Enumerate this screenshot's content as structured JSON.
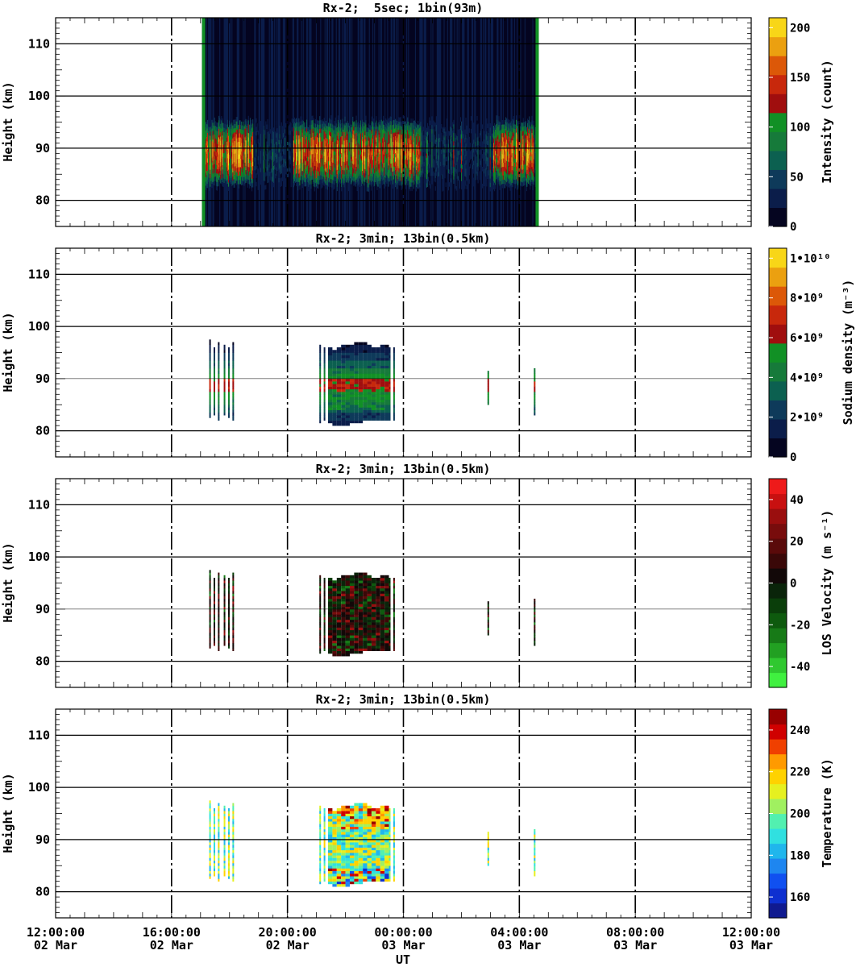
{
  "figure": {
    "x_tick_times": [
      "12:00:00",
      "16:00:00",
      "20:00:00",
      "00:00:00",
      "04:00:00",
      "08:00:00",
      "12:00:00"
    ],
    "x_tick_dates": [
      "02 Mar",
      "02 Mar",
      "02 Mar",
      "03 Mar",
      "03 Mar",
      "03 Mar",
      "03 Mar"
    ],
    "xlabel": "UT"
  },
  "chart_data": [
    {
      "type": "heatmap",
      "title": "Rx-2;  5sec; 1bin(93m)",
      "ylabel": "Height (km)",
      "x_range_hours": [
        12,
        36
      ],
      "ylim": [
        75,
        115
      ],
      "y_ticks": [
        80,
        90,
        100,
        110
      ],
      "grid": true,
      "colorbar": {
        "label": "Intensity (count)",
        "range": [
          0,
          210
        ],
        "tick_values": [
          0,
          50,
          100,
          150,
          200
        ],
        "tick_labels": [
          "0",
          "50",
          "100",
          "150",
          "200"
        ],
        "colors": [
          "#050520",
          "#0b1d4a",
          "#0e3a5a",
          "#0c6050",
          "#167a3a",
          "#119025",
          "#a00e0e",
          "#c8280c",
          "#dc5808",
          "#eba010",
          "#f8d618"
        ]
      },
      "data_coverage_hours": [
        [
          17.05,
          28.6
        ]
      ],
      "layer": {
        "center_km": 89,
        "half_width_km": 5.5
      },
      "bright_intervals_hours": [
        [
          17.1,
          18.8
        ],
        [
          20.2,
          24.6
        ],
        [
          27.1,
          28.5
        ]
      ]
    },
    {
      "type": "heatmap",
      "title": "Rx-2; 3min; 13bin(0.5km)",
      "ylabel": "Height (km)",
      "ylim": [
        75,
        115
      ],
      "y_ticks": [
        80,
        90,
        100,
        110
      ],
      "colorbar": {
        "label": "Sodium density (m⁻³)",
        "range": [
          0,
          10500000000.0
        ],
        "tick_values": [
          0,
          2000000000.0,
          4000000000.0,
          6000000000.0,
          8000000000.0,
          10000000000.0
        ],
        "tick_labels": [
          "0",
          "2•10⁹",
          "4•10⁹",
          "6•10⁹",
          "8•10⁹",
          "1•10¹⁰"
        ],
        "colors": [
          "#050520",
          "#0b1d4a",
          "#0e3a5a",
          "#0c6050",
          "#167a3a",
          "#119025",
          "#a00e0e",
          "#c8280c",
          "#dc5808",
          "#eba010",
          "#f8d618"
        ]
      },
      "profile_start_hours": [
        17.3,
        17.45,
        17.6,
        17.8,
        17.95,
        18.1,
        21.1,
        21.25,
        21.4,
        21.55,
        21.7,
        21.85,
        22.0,
        22.15,
        22.3,
        22.45,
        22.6,
        22.75,
        22.9,
        23.05,
        23.2,
        23.35,
        23.5,
        23.65,
        26.9,
        28.5
      ],
      "profile_width_hours": 0.05,
      "profile_ranges_km": [
        [
          82.5,
          97.5
        ],
        [
          83,
          96
        ],
        [
          82,
          97
        ],
        [
          83,
          96.5
        ],
        [
          82.5,
          96
        ],
        [
          82,
          97
        ],
        [
          81.5,
          96.5
        ],
        [
          82,
          96
        ],
        [
          81.5,
          96
        ],
        [
          81,
          95.5
        ],
        [
          81,
          96
        ],
        [
          81,
          96.5
        ],
        [
          81,
          96.5
        ],
        [
          81.5,
          96.5
        ],
        [
          81.5,
          97
        ],
        [
          81.5,
          97
        ],
        [
          82,
          97
        ],
        [
          82,
          96.5
        ],
        [
          82,
          96
        ],
        [
          82,
          96
        ],
        [
          82,
          96.5
        ],
        [
          82,
          96.5
        ],
        [
          82,
          96
        ],
        [
          82,
          96
        ],
        [
          85,
          91.5
        ],
        [
          83,
          92
        ]
      ]
    },
    {
      "type": "heatmap",
      "title": "Rx-2; 3min; 13bin(0.5km)",
      "ylabel": "Height (km)",
      "ylim": [
        75,
        115
      ],
      "y_ticks": [
        80,
        90,
        100,
        110
      ],
      "colorbar": {
        "label": "LOS Velocity (m s⁻¹)",
        "range": [
          -50,
          50
        ],
        "tick_values": [
          -40,
          -20,
          0,
          20,
          40
        ],
        "tick_labels": [
          "-40",
          "-20",
          "0",
          "20",
          "40"
        ],
        "colors": [
          "#40f040",
          "#30c830",
          "#22a022",
          "#177a17",
          "#0e5a0e",
          "#0a3e0a",
          "#0a240a",
          "#120808",
          "#3a0808",
          "#5a0a0a",
          "#780c0c",
          "#9a0e0e",
          "#c81010",
          "#ee1a1a"
        ]
      },
      "profile_start_hours": [
        17.3,
        17.45,
        17.6,
        17.8,
        17.95,
        18.1,
        21.1,
        21.25,
        21.4,
        21.55,
        21.7,
        21.85,
        22.0,
        22.15,
        22.3,
        22.45,
        22.6,
        22.75,
        22.9,
        23.05,
        23.2,
        23.35,
        23.5,
        23.65,
        26.9,
        28.5
      ],
      "profile_width_hours": 0.05,
      "profile_ranges_km": [
        [
          82.5,
          97.5
        ],
        [
          83,
          96
        ],
        [
          82,
          97
        ],
        [
          83,
          96.5
        ],
        [
          82.5,
          96
        ],
        [
          82,
          97
        ],
        [
          81.5,
          96.5
        ],
        [
          82,
          96
        ],
        [
          81.5,
          96
        ],
        [
          81,
          95.5
        ],
        [
          81,
          96
        ],
        [
          81,
          96.5
        ],
        [
          81,
          96.5
        ],
        [
          81.5,
          96.5
        ],
        [
          81.5,
          97
        ],
        [
          81.5,
          97
        ],
        [
          82,
          97
        ],
        [
          82,
          96.5
        ],
        [
          82,
          96
        ],
        [
          82,
          96
        ],
        [
          82,
          96.5
        ],
        [
          82,
          96.5
        ],
        [
          82,
          96
        ],
        [
          82,
          96
        ],
        [
          85,
          91.5
        ],
        [
          83,
          92
        ]
      ]
    },
    {
      "type": "heatmap",
      "title": "Rx-2; 3min; 13bin(0.5km)",
      "ylabel": "Height (km)",
      "ylim": [
        75,
        115
      ],
      "y_ticks": [
        80,
        90,
        100,
        110
      ],
      "colorbar": {
        "label": "Temperature (K)",
        "range": [
          150,
          250
        ],
        "tick_values": [
          160,
          180,
          200,
          220,
          240
        ],
        "tick_labels": [
          "160",
          "180",
          "200",
          "220",
          "240"
        ],
        "colors": [
          "#101a90",
          "#0e30d0",
          "#1050f0",
          "#1e86f0",
          "#20b6ec",
          "#30e0e0",
          "#52f0b0",
          "#a0f060",
          "#e6f020",
          "#ffd200",
          "#ff9a00",
          "#f04000",
          "#d00000",
          "#980000"
        ]
      },
      "profile_start_hours": [
        17.3,
        17.45,
        17.6,
        17.8,
        17.95,
        18.1,
        21.1,
        21.25,
        21.4,
        21.55,
        21.7,
        21.85,
        22.0,
        22.15,
        22.3,
        22.45,
        22.6,
        22.75,
        22.9,
        23.05,
        23.2,
        23.35,
        23.5,
        23.65,
        26.9,
        28.5
      ],
      "profile_width_hours": 0.05,
      "profile_ranges_km": [
        [
          82.5,
          97.5
        ],
        [
          83,
          96
        ],
        [
          82,
          97
        ],
        [
          83,
          96.5
        ],
        [
          82.5,
          96
        ],
        [
          82,
          97
        ],
        [
          81.5,
          96.5
        ],
        [
          82,
          96
        ],
        [
          81.5,
          96
        ],
        [
          81,
          95.5
        ],
        [
          81,
          96
        ],
        [
          81,
          96.5
        ],
        [
          81,
          96.5
        ],
        [
          81.5,
          96.5
        ],
        [
          81.5,
          97
        ],
        [
          81.5,
          97
        ],
        [
          82,
          97
        ],
        [
          82,
          96.5
        ],
        [
          82,
          96
        ],
        [
          82,
          96
        ],
        [
          82,
          96.5
        ],
        [
          82,
          96.5
        ],
        [
          82,
          96
        ],
        [
          82,
          96
        ],
        [
          85,
          91.5
        ],
        [
          83,
          92
        ]
      ]
    }
  ]
}
